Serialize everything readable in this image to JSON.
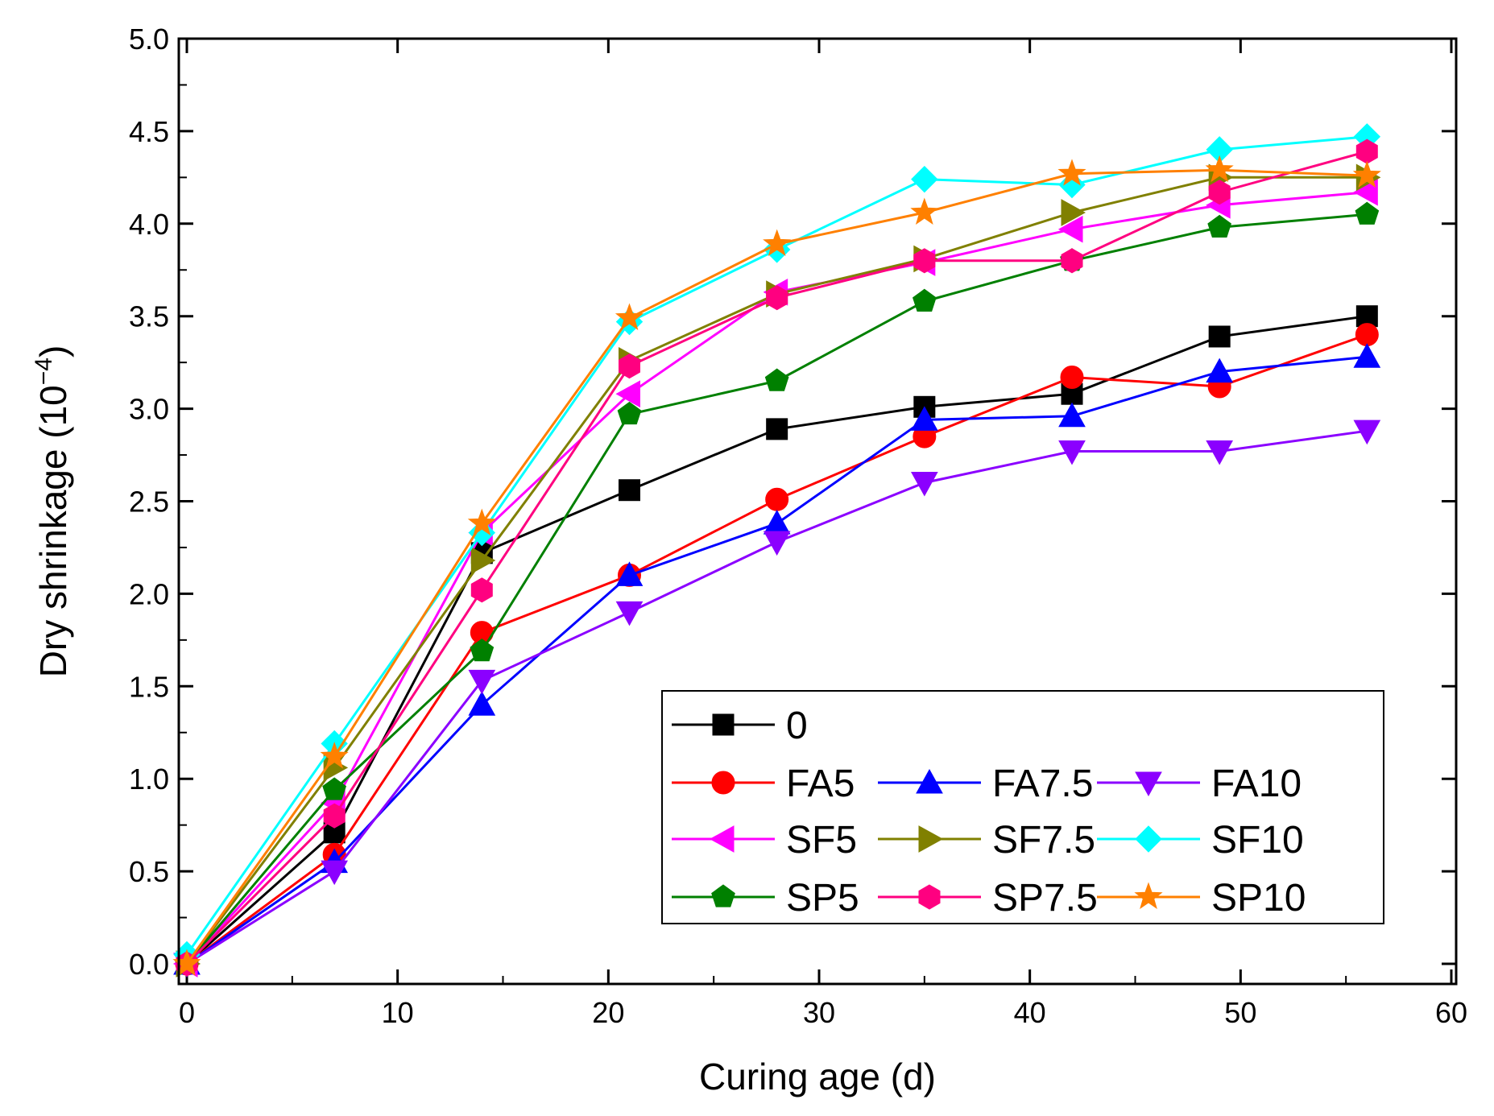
{
  "chart_data": {
    "type": "line",
    "xlabel": "Curing age (d)",
    "ylabel_main": "Dry shrinkage (10",
    "ylabel_exponent": "−4",
    "ylabel_close": ")",
    "xlim": [
      0,
      60
    ],
    "ylim": [
      0,
      5
    ],
    "x_ticks": [
      "0",
      "10",
      "20",
      "30",
      "40",
      "50",
      "60"
    ],
    "y_ticks": [
      "0.0",
      "0.5",
      "1.0",
      "1.5",
      "2.0",
      "2.5",
      "3.0",
      "3.5",
      "4.0",
      "4.5",
      "5.0"
    ],
    "x": [
      0,
      7,
      14,
      21,
      28,
      35,
      42,
      49,
      56
    ],
    "legend_position": "lower-right",
    "series": [
      {
        "name": "0",
        "color": "#000000",
        "marker": "square",
        "values": [
          0.0,
          0.71,
          2.22,
          2.56,
          2.89,
          3.01,
          3.08,
          3.39,
          3.5
        ]
      },
      {
        "name": "FA5",
        "color": "#ff0000",
        "marker": "circle",
        "values": [
          0.0,
          0.59,
          1.79,
          2.1,
          2.51,
          2.85,
          3.17,
          3.12,
          3.4
        ]
      },
      {
        "name": "FA7.5",
        "color": "#0000ff",
        "marker": "triangle-up",
        "values": [
          0.0,
          0.55,
          1.4,
          2.1,
          2.38,
          2.94,
          2.96,
          3.2,
          3.28
        ]
      },
      {
        "name": "FA10",
        "color": "#8b00ff",
        "marker": "triangle-down",
        "values": [
          0.0,
          0.5,
          1.53,
          1.9,
          2.28,
          2.6,
          2.77,
          2.77,
          2.88
        ]
      },
      {
        "name": "SF5",
        "color": "#ff00ff",
        "marker": "triangle-left",
        "values": [
          0.0,
          0.87,
          2.33,
          3.08,
          3.63,
          3.79,
          3.97,
          4.1,
          4.17
        ]
      },
      {
        "name": "SF7.5",
        "color": "#808000",
        "marker": "triangle-right",
        "values": [
          0.0,
          1.06,
          2.18,
          3.26,
          3.62,
          3.81,
          4.06,
          4.25,
          4.25
        ]
      },
      {
        "name": "SF10",
        "color": "#00ffff",
        "marker": "diamond",
        "values": [
          0.05,
          1.19,
          2.33,
          3.47,
          3.86,
          4.24,
          4.21,
          4.4,
          4.47
        ]
      },
      {
        "name": "SP5",
        "color": "#008000",
        "marker": "pentagon",
        "values": [
          0.0,
          0.94,
          1.69,
          2.97,
          3.15,
          3.58,
          3.8,
          3.98,
          4.05
        ]
      },
      {
        "name": "SP7.5",
        "color": "#ff0080",
        "marker": "hexagon",
        "values": [
          0.0,
          0.8,
          2.02,
          3.23,
          3.6,
          3.8,
          3.8,
          4.17,
          4.39
        ]
      },
      {
        "name": "SP10",
        "color": "#ff8000",
        "marker": "star",
        "values": [
          0.0,
          1.12,
          2.38,
          3.49,
          3.89,
          4.06,
          4.27,
          4.29,
          4.26
        ]
      }
    ]
  }
}
